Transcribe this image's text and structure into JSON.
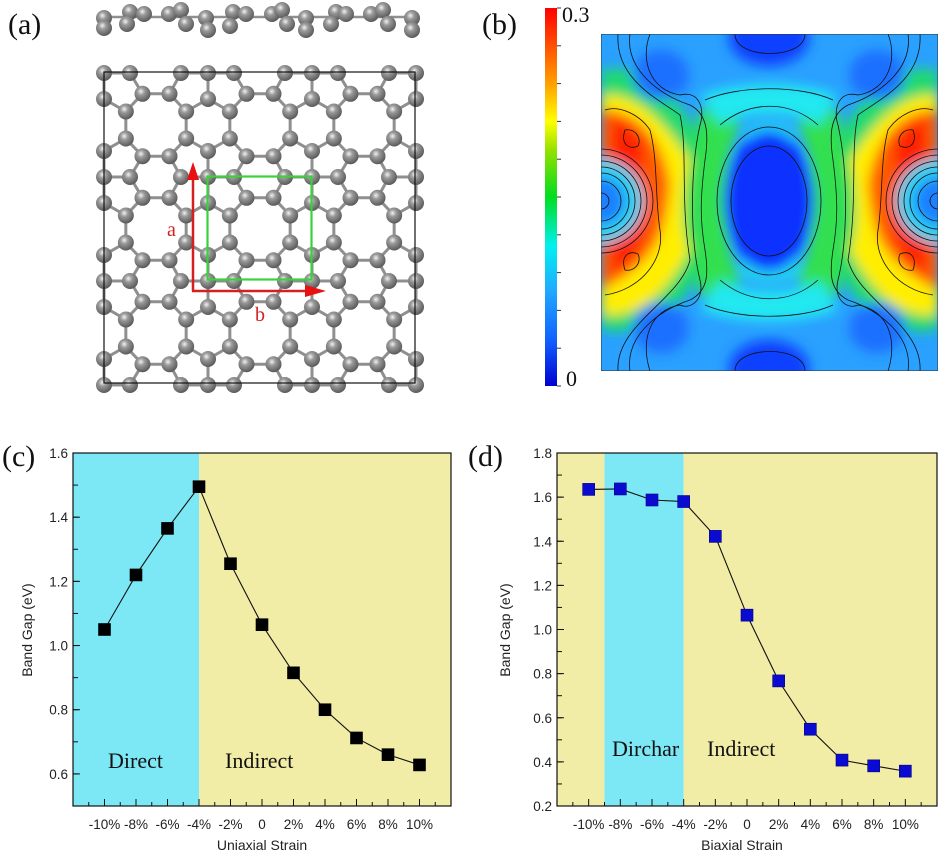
{
  "panels": {
    "a": {
      "label": "(a)",
      "vector_a": "a",
      "vector_b": "b",
      "colors": {
        "atom": "#8a8a8a",
        "bond": "#8f8f8f",
        "cell": "#3ad13a",
        "vector": "#d42020"
      }
    },
    "b": {
      "label": "(b)",
      "colorbar_max": "0.3",
      "colorbar_min": "0",
      "colormap": [
        "#0000ff",
        "#1e90ff",
        "#00ffff",
        "#00dd00",
        "#ffff00",
        "#ff9900",
        "#ff0000"
      ]
    },
    "c": {
      "label": "(c)"
    },
    "d": {
      "label": "(d)"
    }
  },
  "chart_data": [
    {
      "type": "line",
      "panel": "c",
      "xlabel": "Uniaxial Strain",
      "ylabel": "Band Gap (eV)",
      "x": [
        -10,
        -8,
        -6,
        -4,
        -2,
        0,
        2,
        4,
        6,
        8,
        10
      ],
      "xtick_labels": [
        "-10%",
        "-8%",
        "-6%",
        "-4%",
        "-2%",
        "0",
        "2%",
        "4%",
        "6%",
        "8%",
        "10%"
      ],
      "xlim": [
        -12,
        12
      ],
      "ylim": [
        0.5,
        1.6
      ],
      "yticks": [
        0.6,
        0.8,
        1.0,
        1.2,
        1.4,
        1.6
      ],
      "ytick_labels": [
        "0.6",
        "0.8",
        "1.0",
        "1.2",
        "1.4",
        "1.6"
      ],
      "series": [
        {
          "name": "Band Gap",
          "values": [
            1.05,
            1.22,
            1.365,
            1.495,
            1.255,
            1.065,
            0.915,
            0.8,
            0.712,
            0.66,
            0.628
          ],
          "color": "#000000"
        }
      ],
      "regions": [
        {
          "label": "Direct",
          "from": -12,
          "to": -4,
          "color": "#7de8f5"
        },
        {
          "label": "Indirect",
          "from": -4,
          "to": 12,
          "color": "#f1eca6"
        }
      ]
    },
    {
      "type": "line",
      "panel": "d",
      "xlabel": "Biaxial Strain",
      "ylabel": "Band Gap (eV)",
      "x": [
        -10,
        -8,
        -6,
        -4,
        -2,
        0,
        2,
        4,
        6,
        8,
        10
      ],
      "xtick_labels": [
        "-10%",
        "-8%",
        "-6%",
        "-4%",
        "-2%",
        "0",
        "2%",
        "4%",
        "6%",
        "8%",
        "10%"
      ],
      "xlim": [
        -12,
        12
      ],
      "ylim": [
        0.2,
        1.8
      ],
      "yticks": [
        0.2,
        0.4,
        0.6,
        0.8,
        1.0,
        1.2,
        1.4,
        1.6,
        1.8
      ],
      "ytick_labels": [
        "0.2",
        "0.4",
        "0.6",
        "0.8",
        "1.0",
        "1.2",
        "1.4",
        "1.6",
        "1.8"
      ],
      "series": [
        {
          "name": "Band Gap",
          "values": [
            1.635,
            1.637,
            1.587,
            1.58,
            1.422,
            1.065,
            0.767,
            0.548,
            0.408,
            0.382,
            0.358
          ],
          "color": "#0a0ad0"
        }
      ],
      "regions": [
        {
          "label": "",
          "from": -12,
          "to": -9,
          "color": "#f1eca6"
        },
        {
          "label": "Dirchar",
          "from": -9,
          "to": -4,
          "color": "#7de8f5"
        },
        {
          "label": "Indirect",
          "from": -4,
          "to": 12,
          "color": "#f1eca6"
        }
      ]
    }
  ]
}
